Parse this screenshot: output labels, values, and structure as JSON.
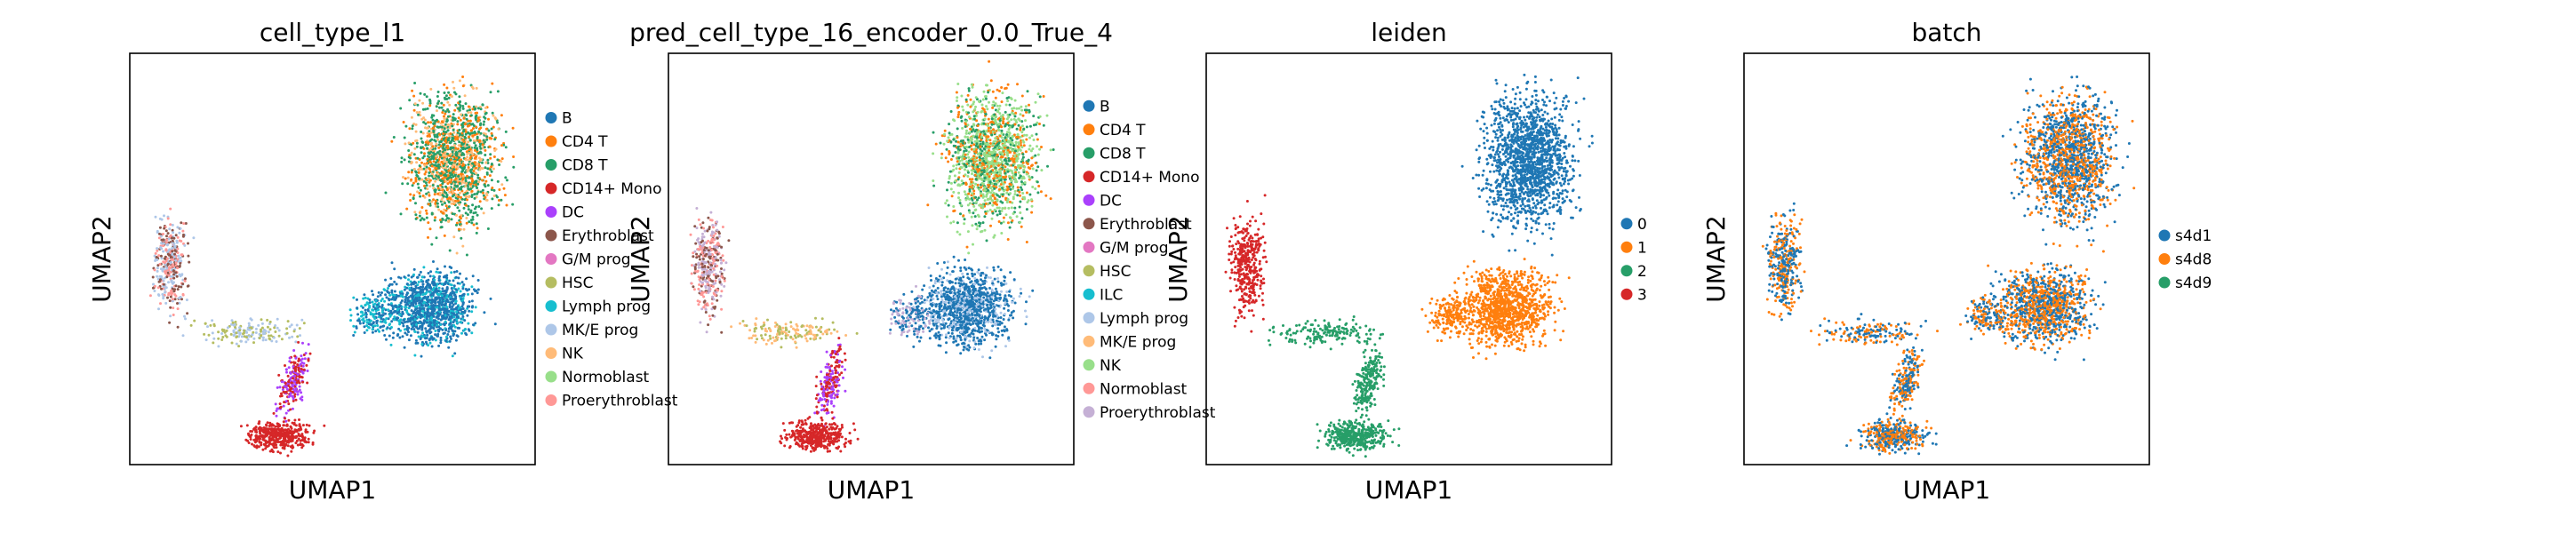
{
  "chart_data": [
    {
      "type": "scatter",
      "title": "cell_type_l1",
      "xlabel": "UMAP1",
      "ylabel": "UMAP2",
      "legend_position": "right",
      "series": [
        {
          "name": "B",
          "color": "#1f77b4"
        },
        {
          "name": "CD4 T",
          "color": "#ff7f0e"
        },
        {
          "name": "CD8 T",
          "color": "#279e68"
        },
        {
          "name": "CD14+ Mono",
          "color": "#d62728"
        },
        {
          "name": "DC",
          "color": "#aa40fc"
        },
        {
          "name": "Erythroblast",
          "color": "#8c564b"
        },
        {
          "name": "G/M prog",
          "color": "#e377c2"
        },
        {
          "name": "HSC",
          "color": "#b5bd61"
        },
        {
          "name": "Lymph prog",
          "color": "#17becf"
        },
        {
          "name": "MK/E prog",
          "color": "#aec7e8"
        },
        {
          "name": "NK",
          "color": "#ffbb78"
        },
        {
          "name": "Normoblast",
          "color": "#98df8a"
        },
        {
          "name": "Proerythroblast",
          "color": "#ff9896"
        }
      ]
    },
    {
      "type": "scatter",
      "title": "pred_cell_type_16_encoder_0.0_True_4",
      "xlabel": "UMAP1",
      "ylabel": "UMAP2",
      "legend_position": "right",
      "series": [
        {
          "name": "B",
          "color": "#1f77b4"
        },
        {
          "name": "CD4 T",
          "color": "#ff7f0e"
        },
        {
          "name": "CD8 T",
          "color": "#279e68"
        },
        {
          "name": "CD14+ Mono",
          "color": "#d62728"
        },
        {
          "name": "DC",
          "color": "#aa40fc"
        },
        {
          "name": "Erythroblast",
          "color": "#8c564b"
        },
        {
          "name": "G/M prog",
          "color": "#e377c2"
        },
        {
          "name": "HSC",
          "color": "#b5bd61"
        },
        {
          "name": "ILC",
          "color": "#17becf"
        },
        {
          "name": "Lymph prog",
          "color": "#aec7e8"
        },
        {
          "name": "MK/E prog",
          "color": "#ffbb78"
        },
        {
          "name": "NK",
          "color": "#98df8a"
        },
        {
          "name": "Normoblast",
          "color": "#ff9896"
        },
        {
          "name": "Proerythroblast",
          "color": "#c5b0d5"
        }
      ]
    },
    {
      "type": "scatter",
      "title": "leiden",
      "xlabel": "UMAP1",
      "ylabel": "UMAP2",
      "legend_position": "right",
      "series": [
        {
          "name": "0",
          "color": "#1f77b4"
        },
        {
          "name": "1",
          "color": "#ff7f0e"
        },
        {
          "name": "2",
          "color": "#279e68"
        },
        {
          "name": "3",
          "color": "#d62728"
        }
      ]
    },
    {
      "type": "scatter",
      "title": "batch",
      "xlabel": "UMAP1",
      "ylabel": "UMAP2",
      "legend_position": "right",
      "series": [
        {
          "name": "s4d1",
          "color": "#1f77b4"
        },
        {
          "name": "s4d8",
          "color": "#ff7f0e"
        },
        {
          "name": "s4d9",
          "color": "#279e68"
        }
      ]
    }
  ]
}
